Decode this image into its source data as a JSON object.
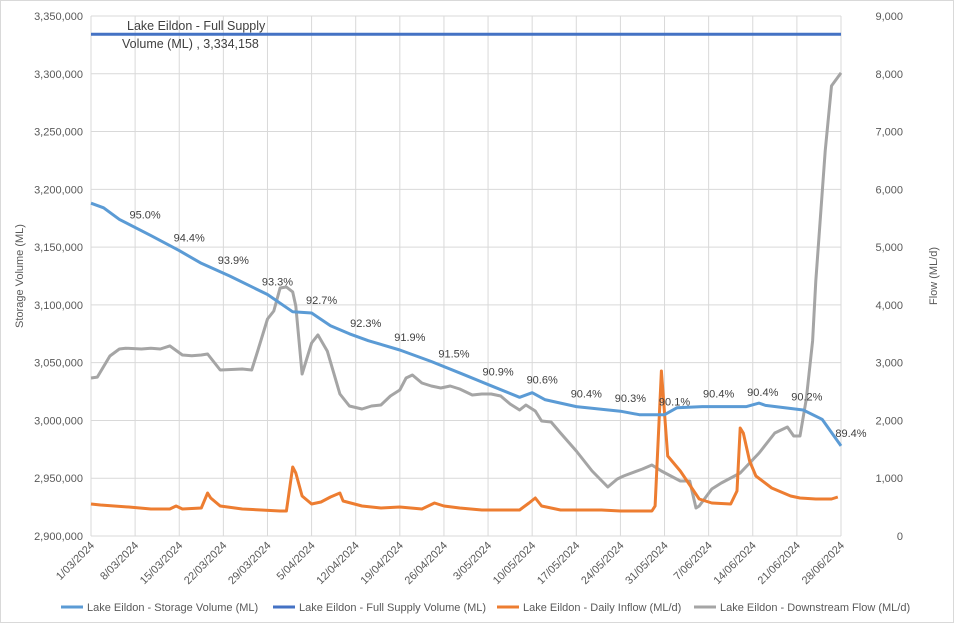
{
  "chart_data": {
    "type": "line",
    "title": "",
    "annotation": "Lake Eildon - Full Supply Volume (ML) , 3,334,158",
    "annotation_line1": "Lake Eildon - Full Supply",
    "annotation_line2": "Volume (ML) , 3,334,158",
    "ylabel": "Storage Volume (ML)",
    "y2label": "Flow (ML/d)",
    "ylim": [
      2900000,
      3350000
    ],
    "y2lim": [
      0,
      9000
    ],
    "yticks": [
      "2,900,000",
      "2,950,000",
      "3,000,000",
      "3,050,000",
      "3,100,000",
      "3,150,000",
      "3,200,000",
      "3,250,000",
      "3,300,000",
      "3,350,000"
    ],
    "y2ticks": [
      "0",
      "1,000",
      "2,000",
      "3,000",
      "4,000",
      "5,000",
      "6,000",
      "7,000",
      "8,000",
      "9,000"
    ],
    "x_unit": "days since 1/03/2024",
    "xlim": [
      0,
      119
    ],
    "xticks": [
      "1/03/2024",
      "8/03/2024",
      "15/03/2024",
      "22/03/2024",
      "29/03/2024",
      "5/04/2024",
      "12/04/2024",
      "19/04/2024",
      "26/04/2024",
      "3/05/2024",
      "10/05/2024",
      "17/05/2024",
      "24/05/2024",
      "31/05/2024",
      "7/06/2024",
      "14/06/2024",
      "21/06/2024",
      "28/06/2024"
    ],
    "grid": true,
    "legend_position": "bottom",
    "series": [
      {
        "name": "Lake Eildon - Storage Volume (ML)",
        "axis": "left",
        "color": "#5b9bd5",
        "points": [
          [
            0,
            3188000
          ],
          [
            2,
            3184000
          ],
          [
            4.5,
            3174000
          ],
          [
            9.5,
            3160000
          ],
          [
            14,
            3147000
          ],
          [
            17.5,
            3136000
          ],
          [
            22,
            3125000
          ],
          [
            28,
            3109000
          ],
          [
            32,
            3094000
          ],
          [
            35,
            3093000
          ],
          [
            38,
            3082000
          ],
          [
            41,
            3075000
          ],
          [
            44,
            3069000
          ],
          [
            49,
            3061000
          ],
          [
            54,
            3051000
          ],
          [
            59,
            3040000
          ],
          [
            63.5,
            3030000
          ],
          [
            68,
            3020000
          ],
          [
            70,
            3024000
          ],
          [
            72,
            3018000
          ],
          [
            77,
            3012000
          ],
          [
            84,
            3008000
          ],
          [
            87,
            3005000
          ],
          [
            91,
            3005000
          ],
          [
            93,
            3011000
          ],
          [
            97,
            3012000
          ],
          [
            104,
            3012000
          ],
          [
            106,
            3015000
          ],
          [
            107,
            3013000
          ],
          [
            113,
            3009000
          ],
          [
            116,
            3001000
          ],
          [
            119,
            2978000
          ]
        ],
        "data_labels": [
          [
            7,
            "95.0%"
          ],
          [
            14,
            "94.4%"
          ],
          [
            21,
            "93.9%"
          ],
          [
            28,
            "93.3%"
          ],
          [
            35,
            "92.7%"
          ],
          [
            42,
            "92.3%"
          ],
          [
            49,
            "91.9%"
          ],
          [
            56,
            "91.5%"
          ],
          [
            63,
            "90.9%"
          ],
          [
            70,
            "90.6%"
          ],
          [
            77,
            "90.4%"
          ],
          [
            84,
            "90.3%"
          ],
          [
            91,
            "90.1%"
          ],
          [
            98,
            "90.4%"
          ],
          [
            105,
            "90.4%"
          ],
          [
            112,
            "90.2%"
          ],
          [
            119,
            "89.4%"
          ]
        ]
      },
      {
        "name": "Lake Eildon - Full Supply Volume (ML)",
        "axis": "left",
        "color": "#4472c4",
        "points": [
          [
            0,
            3334158
          ],
          [
            119,
            3334158
          ]
        ]
      },
      {
        "name": "Lake Eildon - Daily Inflow (ML/d)",
        "axis": "right",
        "color": "#ed7d31",
        "points": [
          [
            0,
            554
          ],
          [
            1.5,
            536
          ],
          [
            6,
            502
          ],
          [
            9.5,
            467
          ],
          [
            12.5,
            467
          ],
          [
            13.5,
            519
          ],
          [
            14.5,
            467
          ],
          [
            17.5,
            485
          ],
          [
            18.5,
            744
          ],
          [
            19,
            658
          ],
          [
            20.5,
            519
          ],
          [
            24,
            467
          ],
          [
            27,
            450
          ],
          [
            30,
            433
          ],
          [
            31,
            433
          ],
          [
            32,
            1194
          ],
          [
            32.5,
            1090
          ],
          [
            33.5,
            692
          ],
          [
            35,
            554
          ],
          [
            36.5,
            589
          ],
          [
            38,
            675
          ],
          [
            39.5,
            744
          ],
          [
            40,
            606
          ],
          [
            43,
            519
          ],
          [
            46,
            485
          ],
          [
            49,
            502
          ],
          [
            52.5,
            467
          ],
          [
            54.5,
            571
          ],
          [
            56,
            519
          ],
          [
            58.5,
            485
          ],
          [
            62,
            450
          ],
          [
            65,
            450
          ],
          [
            68,
            450
          ],
          [
            69.5,
            571
          ],
          [
            70.5,
            658
          ],
          [
            71.5,
            519
          ],
          [
            74.5,
            450
          ],
          [
            77.5,
            450
          ],
          [
            81,
            450
          ],
          [
            84,
            433
          ],
          [
            89,
            433
          ],
          [
            89.5,
            519
          ],
          [
            90.5,
            2856
          ],
          [
            91.5,
            1384
          ],
          [
            93.5,
            1125
          ],
          [
            96.5,
            640
          ],
          [
            98.5,
            571
          ],
          [
            101.5,
            554
          ],
          [
            102.5,
            779
          ],
          [
            103,
            1869
          ],
          [
            103.5,
            1783
          ],
          [
            104.5,
            1298
          ],
          [
            105.5,
            1038
          ],
          [
            108,
            831
          ],
          [
            111,
            692
          ],
          [
            112.5,
            658
          ],
          [
            115,
            640
          ],
          [
            117.5,
            640
          ],
          [
            118.5,
            675
          ]
        ]
      },
      {
        "name": "Lake Eildon - Downstream Flow (ML/d)",
        "axis": "right",
        "color": "#a5a5a5",
        "points": [
          [
            0,
            2735
          ],
          [
            1,
            2750
          ],
          [
            3,
            3116
          ],
          [
            4.5,
            3237
          ],
          [
            5.5,
            3250
          ],
          [
            8,
            3237
          ],
          [
            9.5,
            3250
          ],
          [
            11,
            3237
          ],
          [
            12.5,
            3290
          ],
          [
            14.5,
            3133
          ],
          [
            16,
            3120
          ],
          [
            17.5,
            3133
          ],
          [
            18.5,
            3150
          ],
          [
            20.5,
            2873
          ],
          [
            24,
            2890
          ],
          [
            25.5,
            2873
          ],
          [
            26.5,
            3220
          ],
          [
            28,
            3756
          ],
          [
            29,
            3895
          ],
          [
            30,
            4293
          ],
          [
            31,
            4310
          ],
          [
            32,
            4224
          ],
          [
            32.5,
            3980
          ],
          [
            33.5,
            2804
          ],
          [
            35,
            3341
          ],
          [
            36,
            3480
          ],
          [
            37.5,
            3200
          ],
          [
            39.5,
            2458
          ],
          [
            41,
            2250
          ],
          [
            43,
            2198
          ],
          [
            44.5,
            2250
          ],
          [
            46,
            2267
          ],
          [
            47.5,
            2423
          ],
          [
            49,
            2527
          ],
          [
            50,
            2735
          ],
          [
            51,
            2787
          ],
          [
            52.5,
            2648
          ],
          [
            54,
            2596
          ],
          [
            55.5,
            2562
          ],
          [
            57,
            2596
          ],
          [
            58.5,
            2545
          ],
          [
            60.5,
            2440
          ],
          [
            62,
            2458
          ],
          [
            63.5,
            2458
          ],
          [
            65,
            2423
          ],
          [
            66.5,
            2285
          ],
          [
            68,
            2180
          ],
          [
            69,
            2267
          ],
          [
            70.5,
            2163
          ],
          [
            71.5,
            1990
          ],
          [
            73,
            1973
          ],
          [
            74.5,
            1783
          ],
          [
            77,
            1471
          ],
          [
            79.5,
            1125
          ],
          [
            82,
            848
          ],
          [
            83.5,
            986
          ],
          [
            84.5,
            1038
          ],
          [
            87.5,
            1160
          ],
          [
            89,
            1229
          ],
          [
            90.5,
            1125
          ],
          [
            92,
            1038
          ],
          [
            93.5,
            952
          ],
          [
            95,
            952
          ],
          [
            96,
            485
          ],
          [
            96.5,
            520
          ],
          [
            98.5,
            814
          ],
          [
            100,
            917
          ],
          [
            103,
            1090
          ],
          [
            106,
            1437
          ],
          [
            108.5,
            1783
          ],
          [
            110.5,
            1886
          ],
          [
            111.5,
            1730
          ],
          [
            112.5,
            1730
          ],
          [
            113.5,
            2371
          ],
          [
            114.5,
            3375
          ],
          [
            115,
            4414
          ],
          [
            116.5,
            6664
          ],
          [
            117.5,
            7790
          ],
          [
            119,
            8015
          ]
        ]
      }
    ]
  }
}
